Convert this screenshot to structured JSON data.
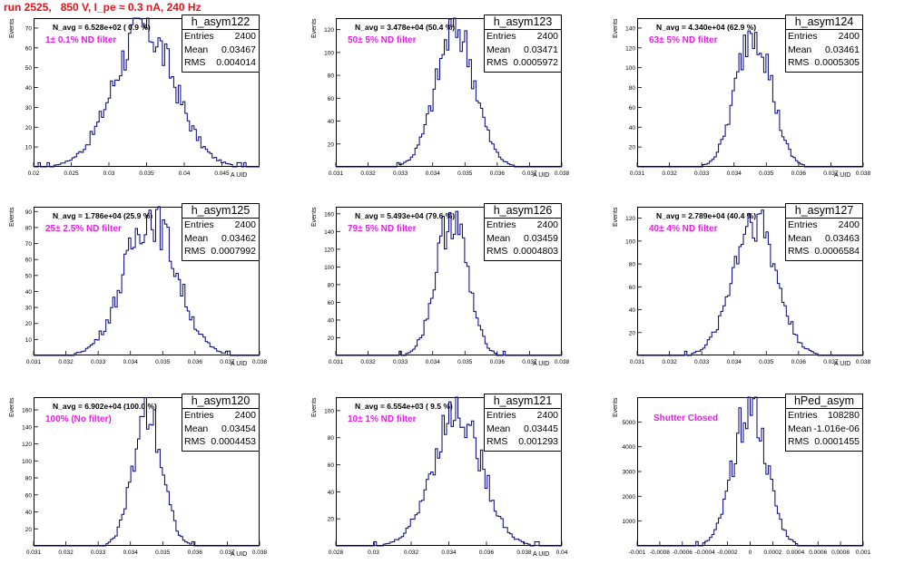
{
  "run_title": "run 2525,   850 V, I_pe ≈ 0.3 nA, 240 Hz",
  "stats_labels": {
    "entries": "Entries",
    "mean": "Mean",
    "rms": "RMS"
  },
  "axis_labels": {
    "y": "Events",
    "x": "A UID"
  },
  "colors": {
    "histogram": "#00007a",
    "filter_text": "#e61ee6",
    "title": "#e0141b"
  },
  "panels": [
    {
      "name": "h_asym122",
      "navg": "N_avg = 6.528e+02 ( 0.9 %)",
      "filter": "1± 0.1% ND filter",
      "entries": "2400",
      "mean": "0.03467",
      "rms": "0.004014"
    },
    {
      "name": "h_asym123",
      "navg": "N_avg = 3.478e+04 (50.4 %)",
      "filter": "50± 5% ND filter",
      "entries": "2400",
      "mean": "0.03471",
      "rms": "0.0005972"
    },
    {
      "name": "h_asym124",
      "navg": "N_avg = 4.340e+04 (62.9 %)",
      "filter": "63± 5% ND filter",
      "entries": "2400",
      "mean": "0.03461",
      "rms": "0.0005305"
    },
    {
      "name": "h_asym125",
      "navg": "N_avg = 1.786e+04 (25.9 %)",
      "filter": "25± 2.5% ND filter",
      "entries": "2400",
      "mean": "0.03462",
      "rms": "0.0007992"
    },
    {
      "name": "h_asym126",
      "navg": "N_avg = 5.493e+04 (79.6 %)",
      "filter": "79± 5% ND filter",
      "entries": "2400",
      "mean": "0.03459",
      "rms": "0.0004803"
    },
    {
      "name": "h_asym127",
      "navg": "N_avg = 2.789e+04 (40.4 %)",
      "filter": "40± 4% ND filter",
      "entries": "2400",
      "mean": "0.03463",
      "rms": "0.0006584"
    },
    {
      "name": "h_asym120",
      "navg": "N_avg = 6.902e+04 (100.0 %)",
      "filter": "100% (No filter)",
      "entries": "2400",
      "mean": "0.03454",
      "rms": "0.0004453"
    },
    {
      "name": "h_asym121",
      "navg": "N_avg = 6.554e+03 ( 9.5 %)",
      "filter": "10± 1% ND filter",
      "entries": "2400",
      "mean": "0.03445",
      "rms": "0.001293"
    },
    {
      "name": "hPed_asym",
      "navg": "",
      "filter": "Shutter Closed",
      "entries": "108280",
      "mean": "-1.016e-06",
      "rms": "0.0001455"
    }
  ],
  "chart_data": [
    {
      "type": "bar",
      "title": "h_asym122",
      "xlabel": "A UID",
      "ylabel": "Events",
      "xlim": [
        0.02,
        0.05
      ],
      "ylim": [
        0,
        75
      ],
      "xticks": [
        "0.02",
        "0.025",
        "0.03",
        "0.035",
        "0.04",
        "0.045"
      ],
      "xtick_values": [
        0.02,
        0.025,
        0.03,
        0.035,
        0.04,
        0.045
      ],
      "yticks": [
        "10",
        "20",
        "30",
        "40",
        "50",
        "60",
        "70"
      ],
      "ytick_values": [
        10,
        20,
        30,
        40,
        50,
        60,
        70
      ],
      "mean": 0.03467,
      "rms": 0.004014,
      "peak": 70
    },
    {
      "type": "bar",
      "title": "h_asym123",
      "xlabel": "A UID",
      "ylabel": "Events",
      "xlim": [
        0.031,
        0.038
      ],
      "ylim": [
        0,
        130
      ],
      "xticks": [
        "0.031",
        "0.032",
        "0.033",
        "0.034",
        "0.035",
        "0.036",
        "0.037",
        "0.038"
      ],
      "xtick_values": [
        0.031,
        0.032,
        0.033,
        0.034,
        0.035,
        0.036,
        0.037,
        0.038
      ],
      "yticks": [
        "20",
        "40",
        "60",
        "80",
        "100",
        "120"
      ],
      "ytick_values": [
        20,
        40,
        60,
        80,
        100,
        120
      ],
      "mean": 0.03471,
      "rms": 0.0005972,
      "peak": 122
    },
    {
      "type": "bar",
      "title": "h_asym124",
      "xlabel": "A UID",
      "ylabel": "Events",
      "xlim": [
        0.031,
        0.038
      ],
      "ylim": [
        0,
        150
      ],
      "xticks": [
        "0.031",
        "0.032",
        "0.033",
        "0.034",
        "0.035",
        "0.036",
        "0.037",
        "0.038"
      ],
      "xtick_values": [
        0.031,
        0.032,
        0.033,
        0.034,
        0.035,
        0.036,
        0.037,
        0.038
      ],
      "yticks": [
        "20",
        "40",
        "60",
        "80",
        "100",
        "120",
        "140"
      ],
      "ytick_values": [
        20,
        40,
        60,
        80,
        100,
        120,
        140
      ],
      "mean": 0.03461,
      "rms": 0.0005305,
      "peak": 142
    },
    {
      "type": "bar",
      "title": "h_asym125",
      "xlabel": "A UID",
      "ylabel": "Events",
      "xlim": [
        0.031,
        0.038
      ],
      "ylim": [
        0,
        93
      ],
      "xticks": [
        "0.031",
        "0.032",
        "0.033",
        "0.034",
        "0.035",
        "0.036",
        "0.037",
        "0.038"
      ],
      "xtick_values": [
        0.031,
        0.032,
        0.033,
        0.034,
        0.035,
        0.036,
        0.037,
        0.038
      ],
      "yticks": [
        "10",
        "20",
        "30",
        "40",
        "50",
        "60",
        "70",
        "80",
        "90"
      ],
      "ytick_values": [
        10,
        20,
        30,
        40,
        50,
        60,
        70,
        80,
        90
      ],
      "mean": 0.03462,
      "rms": 0.0007992,
      "peak": 88
    },
    {
      "type": "bar",
      "title": "h_asym126",
      "xlabel": "A UID",
      "ylabel": "Events",
      "xlim": [
        0.031,
        0.038
      ],
      "ylim": [
        0,
        168
      ],
      "xticks": [
        "0.031",
        "0.032",
        "0.033",
        "0.034",
        "0.035",
        "0.036",
        "0.037",
        "0.038"
      ],
      "xtick_values": [
        0.031,
        0.032,
        0.033,
        0.034,
        0.035,
        0.036,
        0.037,
        0.038
      ],
      "yticks": [
        "20",
        "40",
        "60",
        "80",
        "100",
        "120",
        "140",
        "160"
      ],
      "ytick_values": [
        20,
        40,
        60,
        80,
        100,
        120,
        140,
        160
      ],
      "mean": 0.03459,
      "rms": 0.0004803,
      "peak": 158
    },
    {
      "type": "bar",
      "title": "h_asym127",
      "xlabel": "A UID",
      "ylabel": "Events",
      "xlim": [
        0.031,
        0.038
      ],
      "ylim": [
        0,
        130
      ],
      "xticks": [
        "0.031",
        "0.032",
        "0.033",
        "0.034",
        "0.035",
        "0.036",
        "0.037",
        "0.038"
      ],
      "xtick_values": [
        0.031,
        0.032,
        0.033,
        0.034,
        0.035,
        0.036,
        0.037,
        0.038
      ],
      "yticks": [
        "20",
        "40",
        "60",
        "80",
        "100",
        "120"
      ],
      "ytick_values": [
        20,
        40,
        60,
        80,
        100,
        120
      ],
      "mean": 0.03463,
      "rms": 0.0006584,
      "peak": 122
    },
    {
      "type": "bar",
      "title": "h_asym120",
      "xlabel": "A UID",
      "ylabel": "Events",
      "xlim": [
        0.031,
        0.038
      ],
      "ylim": [
        0,
        175
      ],
      "xticks": [
        "0.031",
        "0.032",
        "0.033",
        "0.034",
        "0.035",
        "0.036",
        "0.037",
        "0.038"
      ],
      "xtick_values": [
        0.031,
        0.032,
        0.033,
        0.034,
        0.035,
        0.036,
        0.037,
        0.038
      ],
      "yticks": [
        "20",
        "40",
        "60",
        "80",
        "100",
        "120",
        "140",
        "160"
      ],
      "ytick_values": [
        20,
        40,
        60,
        80,
        100,
        120,
        140,
        160
      ],
      "mean": 0.03454,
      "rms": 0.0004453,
      "peak": 162
    },
    {
      "type": "bar",
      "title": "h_asym121",
      "xlabel": "A UID",
      "ylabel": "Events",
      "xlim": [
        0.028,
        0.04
      ],
      "ylim": [
        0,
        110
      ],
      "xticks": [
        "0.028",
        "0.03",
        "0.032",
        "0.034",
        "0.036",
        "0.038",
        "0.04"
      ],
      "xtick_values": [
        0.028,
        0.03,
        0.032,
        0.034,
        0.036,
        0.038,
        0.04
      ],
      "yticks": [
        "20",
        "40",
        "60",
        "80",
        "100"
      ],
      "ytick_values": [
        20,
        40,
        60,
        80,
        100
      ],
      "mean": 0.03445,
      "rms": 0.001293,
      "peak": 100
    },
    {
      "type": "bar",
      "title": "hPed_asym",
      "xlabel": "",
      "ylabel": "Events",
      "xlim": [
        -0.001,
        0.001
      ],
      "ylim": [
        0,
        6000
      ],
      "xticks": [
        "-0.001",
        "-0.0008",
        "-0.0006",
        "-0.0004",
        "-0.0002",
        "0",
        "0.0002",
        "0.0004",
        "0.0006",
        "0.0008",
        "0.001"
      ],
      "xtick_values": [
        -0.001,
        -0.0008,
        -0.0006,
        -0.0004,
        -0.0002,
        0,
        0.0002,
        0.0004,
        0.0006,
        0.0008,
        0.001
      ],
      "yticks": [
        "1000",
        "2000",
        "3000",
        "4000",
        "5000"
      ],
      "ytick_values": [
        1000,
        2000,
        3000,
        4000,
        5000
      ],
      "mean": -1.016e-06,
      "rms": 0.0001455,
      "peak": 5700
    }
  ]
}
